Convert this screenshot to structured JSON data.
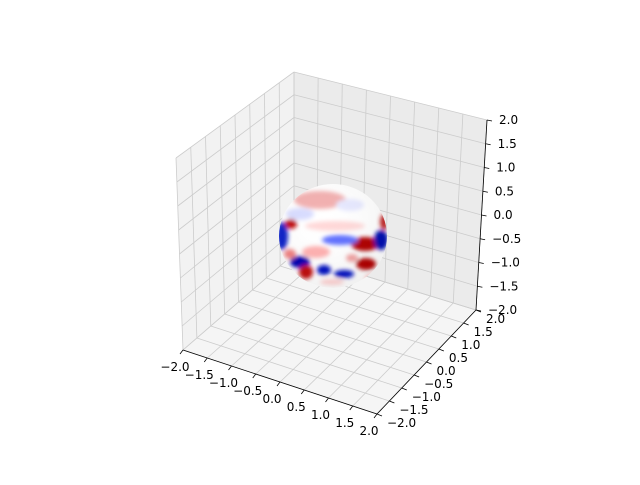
{
  "chart_data": {
    "type": "surface3d",
    "title": "",
    "xlabel": "",
    "ylabel": "",
    "zlabel": "",
    "xlim": [
      -2.0,
      2.0
    ],
    "ylim": [
      -2.0,
      2.0
    ],
    "zlim": [
      -2.0,
      2.0
    ],
    "x_ticks": [
      "−2.0",
      "−1.5",
      "−1.0",
      "−0.5",
      "0.0",
      "0.5",
      "1.0",
      "1.5",
      "2.0"
    ],
    "y_ticks": [
      "−2.0",
      "−1.5",
      "−1.0",
      "−0.5",
      "0.0",
      "0.5",
      "1.0",
      "1.5",
      "2.0"
    ],
    "z_ticks": [
      "−2.0",
      "−1.5",
      "−1.0",
      "−0.5",
      "0.0",
      "0.5",
      "1.0",
      "1.5",
      "2.0"
    ],
    "grid": true,
    "surface": "unit sphere centered at origin, radius 1",
    "colormap": "seismic",
    "colors": {
      "pane": "#f2f2f2",
      "grid": "#cccccc",
      "positive": "#b40000",
      "negative": "#0000b4",
      "neutral": "#ffffff"
    }
  }
}
